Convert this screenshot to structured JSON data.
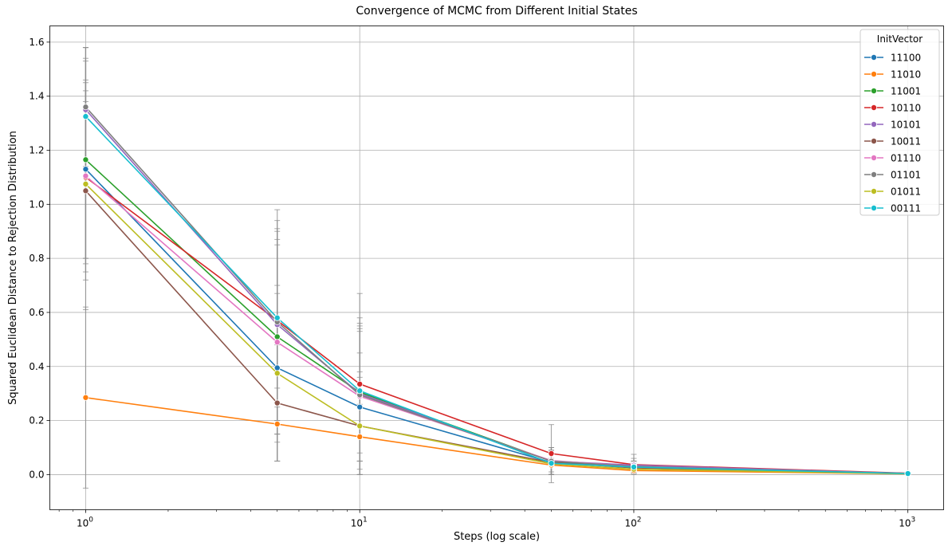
{
  "chart_data": {
    "type": "line",
    "title": "Convergence of MCMC from Different Initial States",
    "xlabel": "Steps (log scale)",
    "ylabel": "Squared Euclidean Distance to Rejection Distribution",
    "x_scale": "log",
    "x": [
      1,
      5,
      10,
      50,
      100,
      1000
    ],
    "x_ticks": [
      {
        "value": 1,
        "base": "10",
        "exp": "0"
      },
      {
        "value": 10,
        "base": "10",
        "exp": "1"
      },
      {
        "value": 100,
        "base": "10",
        "exp": "2"
      },
      {
        "value": 1000,
        "base": "10",
        "exp": "3"
      }
    ],
    "xlim": [
      0.74,
      1350
    ],
    "ylim": [
      -0.13,
      1.66
    ],
    "y_ticks": [
      "0.0",
      "0.2",
      "0.4",
      "0.6",
      "0.8",
      "1.0",
      "1.2",
      "1.4",
      "1.6"
    ],
    "grid": true,
    "legend": {
      "title": "InitVector",
      "placement": "top-right"
    },
    "series": [
      {
        "name": "11100",
        "color": "#1f77b4",
        "values": [
          1.13,
          0.395,
          0.25,
          0.045,
          0.03,
          0.004
        ],
        "err": [
          [
            0.8,
            1.46
          ],
          [
            0.12,
            0.67
          ],
          [
            0.05,
            0.45
          ],
          [
            0.0,
            0.09
          ],
          [
            0.01,
            0.05
          ],
          [
            0.002,
            0.006
          ]
        ]
      },
      {
        "name": "11010",
        "color": "#ff7f0e",
        "values": [
          0.285,
          0.187,
          0.14,
          0.035,
          0.015,
          0.003
        ],
        "err": [
          [
            -0.05,
            0.62
          ],
          [
            0.05,
            0.32
          ],
          [
            0.02,
            0.26
          ],
          [
            0.01,
            0.06
          ],
          [
            0.005,
            0.025
          ],
          [
            0.001,
            0.005
          ]
        ]
      },
      {
        "name": "11001",
        "color": "#2ca02c",
        "values": [
          1.165,
          0.51,
          0.305,
          0.05,
          0.03,
          0.004
        ],
        "err": [
          [
            0.8,
            1.53
          ],
          [
            0.15,
            0.87
          ],
          [
            0.08,
            0.53
          ],
          [
            0.0,
            0.1
          ],
          [
            0.01,
            0.05
          ],
          [
            0.002,
            0.006
          ]
        ]
      },
      {
        "name": "10110",
        "color": "#d62728",
        "values": [
          1.1,
          0.57,
          0.335,
          0.078,
          0.037,
          0.005
        ],
        "err": [
          [
            0.78,
            1.42
          ],
          [
            0.2,
            0.94
          ],
          [
            0.0,
            0.67
          ],
          [
            -0.03,
            0.185
          ],
          [
            0.0,
            0.075
          ],
          [
            0.003,
            0.007
          ]
        ]
      },
      {
        "name": "10101",
        "color": "#9467bd",
        "values": [
          1.35,
          0.555,
          0.3,
          0.05,
          0.035,
          0.004
        ],
        "err": [
          [
            1.1,
            1.58
          ],
          [
            0.2,
            0.9
          ],
          [
            0.05,
            0.55
          ],
          [
            0.0,
            0.1
          ],
          [
            0.01,
            0.06
          ],
          [
            0.002,
            0.006
          ]
        ]
      },
      {
        "name": "10011",
        "color": "#8c564b",
        "values": [
          1.05,
          0.265,
          0.18,
          0.045,
          0.025,
          0.004
        ],
        "err": [
          [
            0.72,
            1.38
          ],
          [
            0.05,
            0.48
          ],
          [
            0.0,
            0.38
          ],
          [
            0.0,
            0.09
          ],
          [
            0.005,
            0.045
          ],
          [
            0.002,
            0.006
          ]
        ]
      },
      {
        "name": "01110",
        "color": "#e377c2",
        "values": [
          1.105,
          0.49,
          0.29,
          0.052,
          0.03,
          0.004
        ],
        "err": [
          [
            0.75,
            1.45
          ],
          [
            0.15,
            0.85
          ],
          [
            0.0,
            0.58
          ],
          [
            0.0,
            0.1
          ],
          [
            0.01,
            0.05
          ],
          [
            0.002,
            0.006
          ]
        ]
      },
      {
        "name": "01101",
        "color": "#7f7f7f",
        "values": [
          1.36,
          0.565,
          0.295,
          0.05,
          0.03,
          0.004
        ],
        "err": [
          [
            1.14,
            1.58
          ],
          [
            0.15,
            0.98
          ],
          [
            0.05,
            0.54
          ],
          [
            0.0,
            0.1
          ],
          [
            0.01,
            0.05
          ],
          [
            0.002,
            0.006
          ]
        ]
      },
      {
        "name": "01011",
        "color": "#bcbd22",
        "values": [
          1.075,
          0.375,
          0.18,
          0.04,
          0.02,
          0.003
        ],
        "err": [
          [
            0.61,
            1.54
          ],
          [
            0.05,
            0.7
          ],
          [
            0.0,
            0.36
          ],
          [
            0.0,
            0.08
          ],
          [
            0.005,
            0.035
          ],
          [
            0.001,
            0.005
          ]
        ]
      },
      {
        "name": "00111",
        "color": "#17becf",
        "values": [
          1.325,
          0.58,
          0.31,
          0.042,
          0.028,
          0.004
        ],
        "err": [
          [
            1.07,
            1.58
          ],
          [
            0.25,
            0.91
          ],
          [
            0.05,
            0.56
          ],
          [
            0.0,
            0.09
          ],
          [
            0.01,
            0.05
          ],
          [
            0.002,
            0.006
          ]
        ]
      }
    ]
  }
}
